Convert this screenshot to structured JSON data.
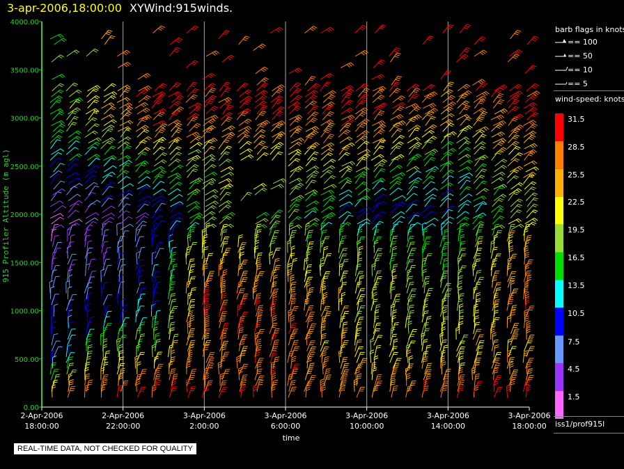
{
  "title": {
    "datetime": "3-apr-2006,18:00:00",
    "product": "XYWind:915winds."
  },
  "colors": {
    "background": "#000000",
    "axis": "#33cc33",
    "title_date": "#ffff00"
  },
  "barb_legend": {
    "title": "barb flags in knots",
    "entries": [
      {
        "label": "== 100",
        "icon": "barb-100-icon"
      },
      {
        "label": "== 50",
        "icon": "barb-50-icon"
      },
      {
        "label": "== 10",
        "icon": "barb-10-icon"
      },
      {
        "label": "== 5",
        "icon": "barb-5-icon"
      }
    ]
  },
  "speed_legend": {
    "title": "wind-speed: knots",
    "bins": [
      {
        "label": "31.5",
        "color": "#ff0000"
      },
      {
        "label": "28.5",
        "color": "#ff8000"
      },
      {
        "label": "25.5",
        "color": "#ffb000"
      },
      {
        "label": "22.5",
        "color": "#ffff00"
      },
      {
        "label": "19.5",
        "color": "#99dd33"
      },
      {
        "label": "16.5",
        "color": "#00dd00"
      },
      {
        "label": "13.5",
        "color": "#00ffff"
      },
      {
        "label": "10.5",
        "color": "#0000ff"
      },
      {
        "label": "7.5",
        "color": "#6699ff"
      },
      {
        "label": "4.5",
        "color": "#9933ff"
      },
      {
        "label": "1.5",
        "color": "#ff66ff"
      }
    ]
  },
  "station": "iss1/prof915l",
  "quality_note": "REAL-TIME DATA, NOT CHECKED FOR QUALITY",
  "chart_data": {
    "type": "scatter",
    "subtype": "wind-barb time-height",
    "xlabel": "time",
    "ylabel": "915 Profiler Altitude (m agl)",
    "x_ticks": [
      {
        "line1": "2-Apr-2006",
        "line2": "18:00:00"
      },
      {
        "line1": "2-Apr-2006",
        "line2": "22:00:00"
      },
      {
        "line1": "3-Apr-2006",
        "line2": "2:00:00"
      },
      {
        "line1": "3-Apr-2006",
        "line2": "6:00:00"
      },
      {
        "line1": "3-Apr-2006",
        "line2": "10:00:00"
      },
      {
        "line1": "3-Apr-2006",
        "line2": "14:00:00"
      },
      {
        "line1": "3-Apr-2006",
        "line2": "18:00:00"
      }
    ],
    "y_ticks": [
      "0.00",
      "500.00",
      "1000.00",
      "1500.00",
      "2000.00",
      "2500.00",
      "3000.00",
      "3500.00",
      "4000.00"
    ],
    "xlim_hours": [
      0,
      24
    ],
    "ylim": [
      0,
      4000
    ],
    "grid": "vertical lines at each time tick",
    "profile_times_hours": [
      0.5,
      1.3,
      2.2,
      3.0,
      3.8,
      4.7,
      5.5,
      6.3,
      7.2,
      8.0,
      8.8,
      9.7,
      10.5,
      11.3,
      12.2,
      13.0,
      13.8,
      14.7,
      15.5,
      16.3,
      17.2,
      18.0,
      18.8,
      19.7,
      20.5,
      21.3,
      22.2,
      23.0,
      23.8
    ],
    "speed_profiles_knots": [
      {
        "t": 0.5,
        "levels": [
          [
            100,
            25
          ],
          [
            500,
            10
          ],
          [
            1000,
            9
          ],
          [
            1500,
            5
          ],
          [
            2000,
            3
          ],
          [
            2800,
            17
          ]
        ]
      },
      {
        "t": 3.0,
        "levels": [
          [
            100,
            31
          ],
          [
            500,
            20
          ],
          [
            1000,
            10
          ],
          [
            1500,
            6
          ],
          [
            2000,
            5
          ],
          [
            3000,
            24
          ]
        ]
      },
      {
        "t": 5.5,
        "levels": [
          [
            100,
            31
          ],
          [
            500,
            22
          ],
          [
            1000,
            12
          ],
          [
            1500,
            10
          ],
          [
            2000,
            8
          ],
          [
            3000,
            31
          ]
        ]
      },
      {
        "t": 8.0,
        "levels": [
          [
            100,
            31
          ],
          [
            500,
            27
          ],
          [
            1000,
            31
          ],
          [
            1500,
            25
          ],
          [
            2000,
            18
          ],
          [
            2500,
            20
          ],
          [
            3000,
            31
          ]
        ]
      },
      {
        "t": 12.0,
        "levels": [
          [
            100,
            29
          ],
          [
            500,
            29
          ],
          [
            1000,
            29
          ],
          [
            1500,
            22
          ],
          [
            2000,
            17
          ],
          [
            2500,
            22
          ],
          [
            3000,
            30
          ]
        ]
      },
      {
        "t": 16.0,
        "levels": [
          [
            100,
            28
          ],
          [
            500,
            22
          ],
          [
            1000,
            21
          ],
          [
            1500,
            20
          ],
          [
            2000,
            10
          ],
          [
            2500,
            21
          ],
          [
            3000,
            31
          ]
        ]
      },
      {
        "t": 20.0,
        "levels": [
          [
            100,
            30
          ],
          [
            500,
            22
          ],
          [
            1000,
            20
          ],
          [
            1500,
            18
          ],
          [
            2000,
            12
          ],
          [
            2500,
            15
          ],
          [
            3000,
            25
          ],
          [
            3500,
            31
          ]
        ]
      },
      {
        "t": 23.5,
        "levels": [
          [
            100,
            31
          ],
          [
            500,
            25
          ],
          [
            1000,
            29
          ],
          [
            1500,
            26
          ],
          [
            2000,
            20
          ],
          [
            2500,
            25
          ],
          [
            3000,
            31
          ],
          [
            3500,
            31
          ],
          [
            4000,
            31
          ]
        ]
      }
    ]
  }
}
